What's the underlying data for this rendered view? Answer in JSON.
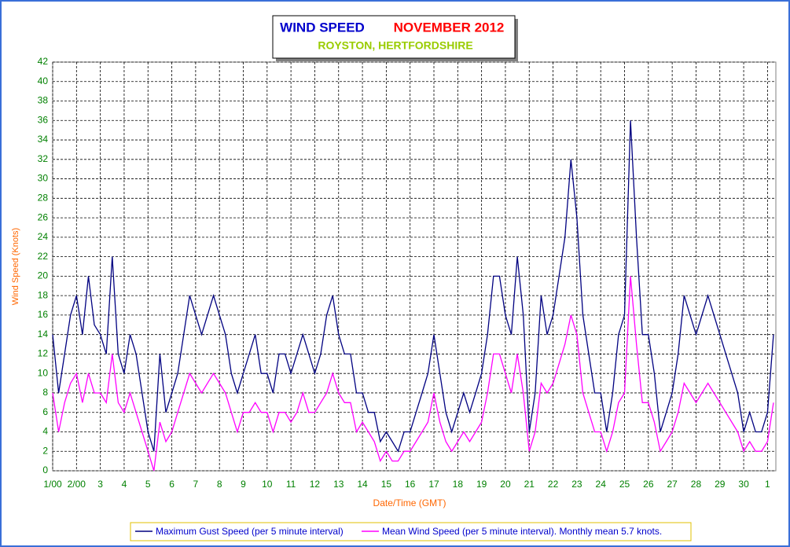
{
  "chart_data": {
    "type": "line",
    "title": "WIND SPEED",
    "title_period": "NOVEMBER 2012",
    "subtitle": "ROYSTON, HERTFORDSHIRE",
    "x_label": "Date/Time (GMT)",
    "y_label": "Wind Speed (Knots)",
    "xlim": [
      1,
      31.35
    ],
    "ylim": [
      0,
      42
    ],
    "grid": true,
    "legend": "bottom",
    "xticks": [
      {
        "value": 1,
        "label": "1/00"
      },
      {
        "value": 2,
        "label": "2/00"
      },
      3,
      4,
      5,
      6,
      7,
      8,
      9,
      10,
      11,
      12,
      13,
      14,
      15,
      16,
      17,
      18,
      19,
      20,
      21,
      22,
      23,
      24,
      25,
      26,
      27,
      28,
      29,
      30,
      {
        "value": 31,
        "label": "1"
      }
    ],
    "yticks": [
      0,
      2,
      4,
      6,
      8,
      10,
      12,
      14,
      16,
      18,
      20,
      22,
      24,
      26,
      28,
      30,
      32,
      34,
      36,
      38,
      40,
      42
    ],
    "x": [
      1,
      1.25,
      1.5,
      1.75,
      2,
      2.25,
      2.5,
      2.75,
      3,
      3.25,
      3.5,
      3.75,
      4,
      4.25,
      4.5,
      4.75,
      5,
      5.25,
      5.5,
      5.75,
      6,
      6.25,
      6.5,
      6.75,
      7,
      7.25,
      7.5,
      7.75,
      8,
      8.25,
      8.5,
      8.75,
      9,
      9.25,
      9.5,
      9.75,
      10,
      10.25,
      10.5,
      10.75,
      11,
      11.25,
      11.5,
      11.75,
      12,
      12.25,
      12.5,
      12.75,
      13,
      13.25,
      13.5,
      13.75,
      14,
      14.25,
      14.5,
      14.75,
      15,
      15.25,
      15.5,
      15.75,
      16,
      16.25,
      16.5,
      16.75,
      17,
      17.25,
      17.5,
      17.75,
      18,
      18.25,
      18.5,
      18.75,
      19,
      19.25,
      19.5,
      19.75,
      20,
      20.25,
      20.5,
      20.75,
      21,
      21.25,
      21.5,
      21.75,
      22,
      22.25,
      22.5,
      22.75,
      23,
      23.25,
      23.5,
      23.75,
      24,
      24.25,
      24.5,
      24.75,
      25,
      25.25,
      25.5,
      25.75,
      26,
      26.25,
      26.5,
      26.75,
      27,
      27.25,
      27.5,
      27.75,
      28,
      28.25,
      28.5,
      28.75,
      29,
      29.25,
      29.5,
      29.75,
      30,
      30.25,
      30.5,
      30.75,
      31,
      31.25
    ],
    "series": [
      {
        "name": "Maximum Gust Speed (per 5 minute interval)",
        "color": "#000080",
        "values": [
          14,
          8,
          12,
          16,
          18,
          14,
          20,
          15,
          14,
          12,
          22,
          12,
          10,
          14,
          12,
          8,
          4,
          2,
          12,
          6,
          8,
          10,
          14,
          18,
          16,
          14,
          16,
          18,
          16,
          14,
          10,
          8,
          10,
          12,
          14,
          10,
          10,
          8,
          12,
          12,
          10,
          12,
          14,
          12,
          10,
          12,
          16,
          18,
          14,
          12,
          12,
          8,
          8,
          6,
          6,
          3,
          4,
          3,
          2,
          4,
          4,
          6,
          8,
          10,
          14,
          10,
          6,
          4,
          6,
          8,
          6,
          8,
          10,
          14,
          20,
          20,
          16,
          14,
          22,
          16,
          4,
          8,
          18,
          14,
          16,
          20,
          24,
          32,
          26,
          16,
          12,
          8,
          8,
          4,
          8,
          14,
          16,
          36,
          24,
          14,
          14,
          10,
          4,
          6,
          8,
          12,
          18,
          16,
          14,
          16,
          18,
          16,
          14,
          12,
          10,
          8,
          4,
          6,
          4,
          4,
          6,
          14
        ]
      },
      {
        "name": "Mean Wind Speed (per 5 minute interval). Monthly mean 5.7 knots.",
        "color": "#ff00ff",
        "values": [
          8,
          4,
          7,
          9,
          10,
          7,
          10,
          8,
          8,
          7,
          12,
          7,
          6,
          8,
          6,
          4,
          2,
          0,
          5,
          3,
          4,
          6,
          8,
          10,
          9,
          8,
          9,
          10,
          9,
          8,
          6,
          4,
          6,
          6,
          7,
          6,
          6,
          4,
          6,
          6,
          5,
          6,
          8,
          6,
          6,
          7,
          8,
          10,
          8,
          7,
          7,
          4,
          5,
          4,
          3,
          1,
          2,
          1,
          1,
          2,
          2,
          3,
          4,
          5,
          8,
          5,
          3,
          2,
          3,
          4,
          3,
          4,
          5,
          8,
          12,
          12,
          10,
          8,
          12,
          8,
          2,
          4,
          9,
          8,
          9,
          11,
          13,
          16,
          14,
          8,
          6,
          4,
          4,
          2,
          4,
          7,
          8,
          20,
          13,
          7,
          7,
          5,
          2,
          3,
          4,
          6,
          9,
          8,
          7,
          8,
          9,
          8,
          7,
          6,
          5,
          4,
          2,
          3,
          2,
          2,
          3,
          7
        ]
      }
    ]
  }
}
